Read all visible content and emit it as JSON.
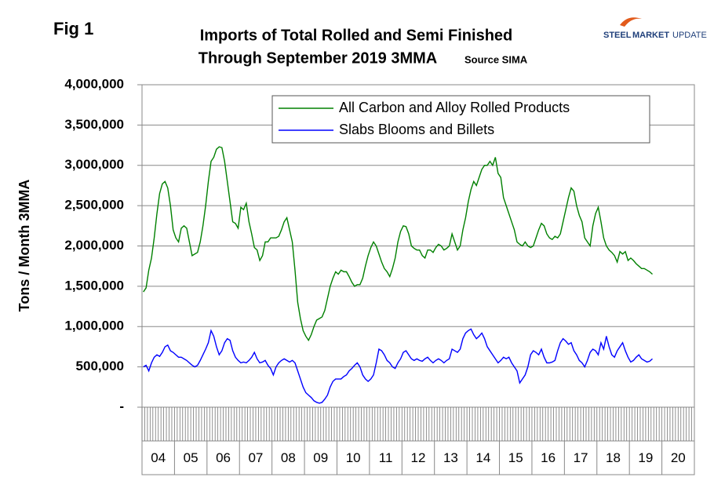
{
  "chart_data": {
    "type": "line",
    "figure_label": "Fig 1",
    "title": [
      "Imports of Total Rolled and Semi Finished",
      "Through September 2019 3MMA"
    ],
    "source": "Source SIMA",
    "logo": [
      "STEEL",
      "MARKET",
      "UPDATE"
    ],
    "y_label": "Tons / Month 3MMA",
    "grid": true,
    "ylim": [
      0,
      4000000
    ],
    "yticks": [
      {
        "value": 0,
        "label": "-"
      },
      {
        "value": 500000,
        "label": "500,000"
      },
      {
        "value": 1000000,
        "label": "1,000,000"
      },
      {
        "value": 1500000,
        "label": "1,500,000"
      },
      {
        "value": 2000000,
        "label": "2,000,000"
      },
      {
        "value": 2500000,
        "label": "2,500,000"
      },
      {
        "value": 3000000,
        "label": "3,000,000"
      },
      {
        "value": 3500000,
        "label": "3,500,000"
      },
      {
        "value": 4000000,
        "label": "4,000,000"
      }
    ],
    "categories": [
      "04",
      null,
      null,
      null,
      null,
      null,
      null,
      null,
      null,
      null,
      null,
      null,
      "05",
      null,
      null,
      null,
      null,
      null,
      null,
      null,
      null,
      null,
      null,
      null,
      "06",
      null,
      null,
      null,
      null,
      null,
      null,
      null,
      null,
      null,
      null,
      null,
      "07",
      null,
      null,
      null,
      null,
      null,
      null,
      null,
      null,
      null,
      null,
      null,
      "08",
      null,
      null,
      null,
      null,
      null,
      null,
      null,
      null,
      null,
      null,
      null,
      "09",
      null,
      null,
      null,
      null,
      null,
      null,
      null,
      null,
      null,
      null,
      null,
      "10",
      null,
      null,
      null,
      null,
      null,
      null,
      null,
      null,
      null,
      null,
      null,
      "11",
      null,
      null,
      null,
      null,
      null,
      null,
      null,
      null,
      null,
      null,
      null,
      "12",
      null,
      null,
      null,
      null,
      null,
      null,
      null,
      null,
      null,
      null,
      null,
      "13",
      null,
      null,
      null,
      null,
      null,
      null,
      null,
      null,
      null,
      null,
      null,
      "14",
      null,
      null,
      null,
      null,
      null,
      null,
      null,
      null,
      null,
      null,
      null,
      "15",
      null,
      null,
      null,
      null,
      null,
      null,
      null,
      null,
      null,
      null,
      null,
      "16",
      null,
      null,
      null,
      null,
      null,
      null,
      null,
      null,
      null,
      null,
      null,
      "17",
      null,
      null,
      null,
      null,
      null,
      null,
      null,
      null,
      null,
      null,
      null,
      "18",
      null,
      null,
      null,
      null,
      null,
      null,
      null,
      null,
      null,
      null,
      null,
      "19",
      null,
      null,
      null,
      null,
      null,
      null,
      null,
      null,
      null,
      null,
      null,
      "20",
      null,
      null,
      null,
      null,
      null,
      null,
      null,
      null,
      null,
      null,
      null
    ],
    "series": [
      {
        "name": "All Carbon and Alloy Rolled Products",
        "color": "#008000",
        "values": [
          1430000,
          1480000,
          1700000,
          1850000,
          2100000,
          2400000,
          2650000,
          2770000,
          2800000,
          2720000,
          2500000,
          2200000,
          2100000,
          2050000,
          2220000,
          2250000,
          2220000,
          2050000,
          1880000,
          1900000,
          1920000,
          2050000,
          2250000,
          2500000,
          2800000,
          3050000,
          3100000,
          3200000,
          3230000,
          3220000,
          3050000,
          2800000,
          2550000,
          2300000,
          2280000,
          2220000,
          2480000,
          2450000,
          2530000,
          2300000,
          2150000,
          1980000,
          1950000,
          1820000,
          1880000,
          2050000,
          2050000,
          2100000,
          2100000,
          2100000,
          2120000,
          2200000,
          2300000,
          2350000,
          2200000,
          2050000,
          1700000,
          1300000,
          1100000,
          950000,
          880000,
          830000,
          900000,
          1000000,
          1080000,
          1100000,
          1120000,
          1200000,
          1350000,
          1500000,
          1600000,
          1680000,
          1650000,
          1700000,
          1680000,
          1680000,
          1620000,
          1550000,
          1500000,
          1520000,
          1520000,
          1600000,
          1750000,
          1880000,
          1980000,
          2050000,
          2000000,
          1900000,
          1800000,
          1720000,
          1680000,
          1620000,
          1720000,
          1850000,
          2050000,
          2180000,
          2250000,
          2240000,
          2150000,
          2000000,
          1970000,
          1950000,
          1950000,
          1880000,
          1850000,
          1950000,
          1950000,
          1920000,
          1980000,
          2020000,
          2000000,
          1950000,
          1970000,
          2000000,
          2150000,
          2050000,
          1950000,
          2000000,
          2200000,
          2350000,
          2550000,
          2700000,
          2800000,
          2750000,
          2850000,
          2950000,
          3000000,
          3000000,
          3050000,
          3000000,
          3100000,
          2900000,
          2850000,
          2600000,
          2500000,
          2400000,
          2300000,
          2200000,
          2050000,
          2020000,
          2000000,
          2050000,
          2000000,
          1980000,
          2000000,
          2100000,
          2200000,
          2280000,
          2250000,
          2150000,
          2100000,
          2080000,
          2120000,
          2100000,
          2150000,
          2300000,
          2450000,
          2600000,
          2720000,
          2680000,
          2500000,
          2380000,
          2300000,
          2100000,
          2050000,
          2000000,
          2250000,
          2400000,
          2480000,
          2300000,
          2100000,
          2000000,
          1950000,
          1920000,
          1880000,
          1800000,
          1930000,
          1900000,
          1930000,
          1820000,
          1850000,
          1820000,
          1780000,
          1750000,
          1720000,
          1720000,
          1700000,
          1680000,
          1650000,
          null,
          null,
          null,
          null,
          null,
          null,
          null,
          null,
          null,
          null,
          null,
          null,
          null,
          null,
          null
        ]
      },
      {
        "name": "Slabs Blooms and Billets",
        "color": "#0000ff",
        "values": [
          500000,
          520000,
          450000,
          550000,
          620000,
          650000,
          630000,
          680000,
          750000,
          770000,
          700000,
          680000,
          650000,
          620000,
          620000,
          600000,
          580000,
          550000,
          520000,
          500000,
          520000,
          580000,
          650000,
          720000,
          800000,
          950000,
          880000,
          750000,
          650000,
          700000,
          800000,
          850000,
          830000,
          700000,
          620000,
          580000,
          550000,
          560000,
          550000,
          580000,
          620000,
          680000,
          600000,
          550000,
          560000,
          580000,
          520000,
          480000,
          400000,
          500000,
          550000,
          580000,
          600000,
          580000,
          560000,
          580000,
          550000,
          450000,
          350000,
          250000,
          180000,
          150000,
          120000,
          80000,
          60000,
          50000,
          60000,
          100000,
          150000,
          250000,
          320000,
          350000,
          350000,
          350000,
          380000,
          400000,
          450000,
          480000,
          520000,
          550000,
          500000,
          400000,
          350000,
          320000,
          350000,
          400000,
          550000,
          720000,
          700000,
          650000,
          580000,
          550000,
          500000,
          480000,
          550000,
          600000,
          680000,
          700000,
          650000,
          600000,
          580000,
          600000,
          580000,
          570000,
          600000,
          620000,
          580000,
          550000,
          580000,
          600000,
          580000,
          550000,
          580000,
          600000,
          720000,
          700000,
          680000,
          720000,
          850000,
          920000,
          950000,
          970000,
          900000,
          850000,
          880000,
          920000,
          850000,
          750000,
          700000,
          650000,
          600000,
          550000,
          580000,
          620000,
          600000,
          620000,
          550000,
          500000,
          450000,
          300000,
          350000,
          400000,
          500000,
          650000,
          700000,
          680000,
          650000,
          720000,
          620000,
          550000,
          550000,
          560000,
          580000,
          700000,
          800000,
          850000,
          820000,
          780000,
          800000,
          700000,
          650000,
          580000,
          550000,
          500000,
          580000,
          680000,
          720000,
          700000,
          650000,
          800000,
          720000,
          880000,
          750000,
          650000,
          620000,
          700000,
          750000,
          800000,
          700000,
          620000,
          560000,
          580000,
          620000,
          650000,
          600000,
          580000,
          560000,
          570000,
          600000,
          null,
          null,
          null,
          null,
          null,
          null,
          null,
          null,
          null,
          null,
          null,
          null,
          null,
          null,
          null
        ]
      }
    ]
  }
}
